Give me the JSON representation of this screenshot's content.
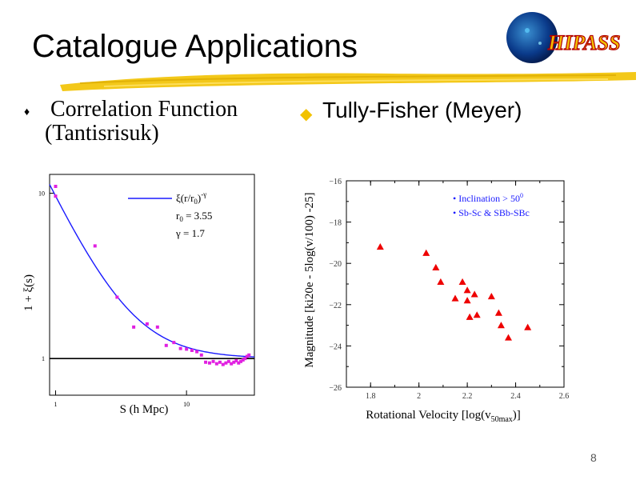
{
  "slide": {
    "title": "Catalogue Applications",
    "left_heading_line1": " Correlation Function",
    "left_heading_line2": "(Tantisrisuk)",
    "right_heading": "Tully-Fisher (Meyer)",
    "page_number": "8",
    "logo_text": "HIPASS",
    "bullet_left_color": "#000000",
    "bullet_right_color": "#f2c200",
    "brush_color": "#f2c200"
  },
  "chart_data": [
    {
      "type": "scatter",
      "xlabel": "S (h Mpc)",
      "ylabel": "1 + ξ(s)",
      "x_scale": "log",
      "y_scale": "log",
      "xlim": [
        0.9,
        33
      ],
      "ylim": [
        0.6,
        13
      ],
      "x_ticks": [
        {
          "value": 1,
          "label": "1"
        },
        {
          "value": 10,
          "label": "10"
        }
      ],
      "y_ticks": [
        {
          "value": 1,
          "label": "1"
        },
        {
          "value": 10,
          "label": "10"
        }
      ],
      "legend": {
        "position": "top-right",
        "line1": "ξ(r/r",
        "line1_sub": "0",
        "line1_end": ")",
        "line1_sup": "-γ",
        "line2": "r",
        "line2_sub": "0",
        "line2_end": " = 3.55",
        "line3": "γ = 1.7"
      },
      "model": {
        "r0": 3.55,
        "gamma": 1.7,
        "color": "#1a1aff"
      },
      "reference_line": {
        "y": 1,
        "color": "#000000"
      },
      "points_color": "#e020e0",
      "points": [
        {
          "x": 1.0,
          "y": 11.0
        },
        {
          "x": 1.0,
          "y": 9.6
        },
        {
          "x": 2.0,
          "y": 4.8
        },
        {
          "x": 2.95,
          "y": 2.35
        },
        {
          "x": 3.95,
          "y": 1.55
        },
        {
          "x": 5.0,
          "y": 1.62
        },
        {
          "x": 6.0,
          "y": 1.55
        },
        {
          "x": 7.0,
          "y": 1.2
        },
        {
          "x": 8.0,
          "y": 1.25
        },
        {
          "x": 9.0,
          "y": 1.15
        },
        {
          "x": 10.0,
          "y": 1.14
        },
        {
          "x": 11.0,
          "y": 1.12
        },
        {
          "x": 12.0,
          "y": 1.1
        },
        {
          "x": 13.0,
          "y": 1.05
        },
        {
          "x": 14.0,
          "y": 0.95
        },
        {
          "x": 15.0,
          "y": 0.94
        },
        {
          "x": 16.0,
          "y": 0.96
        },
        {
          "x": 17.0,
          "y": 0.93
        },
        {
          "x": 18.0,
          "y": 0.95
        },
        {
          "x": 19.0,
          "y": 0.92
        },
        {
          "x": 20.0,
          "y": 0.94
        },
        {
          "x": 21.0,
          "y": 0.96
        },
        {
          "x": 22.0,
          "y": 0.93
        },
        {
          "x": 23.0,
          "y": 0.95
        },
        {
          "x": 24.0,
          "y": 0.97
        },
        {
          "x": 25.0,
          "y": 0.94
        },
        {
          "x": 26.0,
          "y": 0.96
        },
        {
          "x": 27.0,
          "y": 0.98
        },
        {
          "x": 28.0,
          "y": 1.0
        },
        {
          "x": 29.0,
          "y": 1.03
        },
        {
          "x": 30.0,
          "y": 1.05
        }
      ]
    },
    {
      "type": "scatter",
      "xlabel": "Rotational Velocity [log(v",
      "xlabel_sub": "50max",
      "xlabel_end": ")]",
      "ylabel": "Magnitude  [ki20e - 5log(v/100) -25]",
      "xlim": [
        1.7,
        2.6
      ],
      "ylim": [
        -26,
        -16
      ],
      "y_inverted": true,
      "x_ticks": [
        1.8,
        2,
        2.2,
        2.4,
        2.6
      ],
      "x_tick_labels": [
        "1.8",
        "2",
        "2.2",
        "2.4",
        "2.6"
      ],
      "y_ticks": [
        -16,
        -18,
        -20,
        -22,
        -24,
        -26
      ],
      "y_tick_labels": [
        "−16",
        "−18",
        "−20",
        "−22",
        "−24",
        "−26"
      ],
      "annotation": {
        "position": "top-right",
        "line1": "• Inclination > 50",
        "line1_sup": "0",
        "line2": "• Sb-Sc & SBb-SBc"
      },
      "marker": "triangle",
      "points_color": "#ee0000",
      "points": [
        {
          "x": 1.84,
          "y": -19.2
        },
        {
          "x": 2.03,
          "y": -19.5
        },
        {
          "x": 2.07,
          "y": -20.2
        },
        {
          "x": 2.09,
          "y": -20.9
        },
        {
          "x": 2.15,
          "y": -21.7
        },
        {
          "x": 2.18,
          "y": -20.9
        },
        {
          "x": 2.2,
          "y": -21.3
        },
        {
          "x": 2.2,
          "y": -21.8
        },
        {
          "x": 2.21,
          "y": -22.6
        },
        {
          "x": 2.23,
          "y": -21.5
        },
        {
          "x": 2.24,
          "y": -22.5
        },
        {
          "x": 2.3,
          "y": -21.6
        },
        {
          "x": 2.33,
          "y": -22.4
        },
        {
          "x": 2.34,
          "y": -23.0
        },
        {
          "x": 2.37,
          "y": -23.6
        },
        {
          "x": 2.45,
          "y": -23.1
        }
      ]
    }
  ]
}
